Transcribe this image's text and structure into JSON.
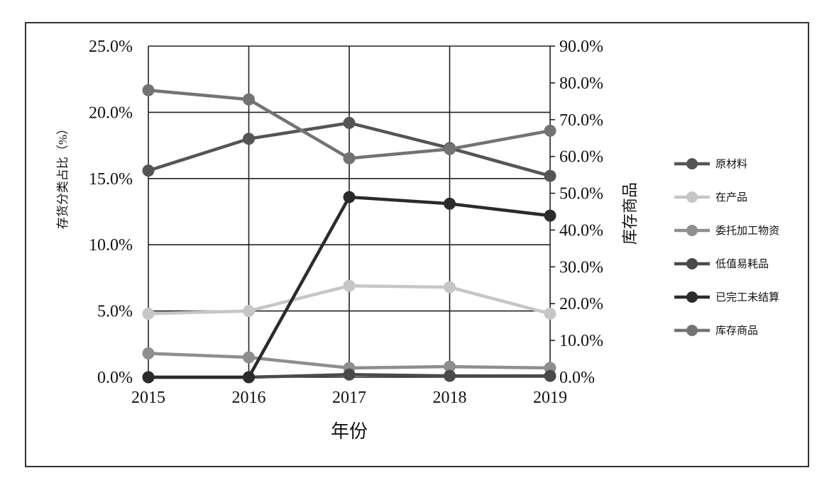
{
  "chart_data": {
    "type": "line",
    "x": [
      "2015",
      "2016",
      "2017",
      "2018",
      "2019"
    ],
    "xlabel": "年份",
    "ylabel": "存货分类占比（%）",
    "y2label": "库存商品",
    "ylim": [
      0,
      25
    ],
    "y2lim": [
      0,
      90
    ],
    "yticks": [
      "0.0%",
      "5.0%",
      "10.0%",
      "15.0%",
      "20.0%",
      "25.0%"
    ],
    "y2ticks": [
      "0.0%",
      "10.0%",
      "20.0%",
      "30.0%",
      "40.0%",
      "50.0%",
      "60.0%",
      "70.0%",
      "80.0%",
      "90.0%"
    ],
    "grid": true,
    "legend_position": "right",
    "series": [
      {
        "name": "原材料",
        "axis": "left",
        "color": "#555555",
        "values": [
          15.6,
          18.0,
          19.2,
          17.3,
          15.2
        ]
      },
      {
        "name": "在产品",
        "axis": "left",
        "color": "#c6c6c6",
        "values": [
          4.8,
          5.0,
          6.9,
          6.8,
          4.8
        ]
      },
      {
        "name": "委托加工物资",
        "axis": "left",
        "color": "#8e8e8e",
        "values": [
          1.8,
          1.5,
          0.7,
          0.8,
          0.7
        ]
      },
      {
        "name": "低值易耗品",
        "axis": "left",
        "color": "#4a4a4a",
        "values": [
          0.0,
          0.0,
          0.2,
          0.1,
          0.1
        ]
      },
      {
        "name": "已完工未结算",
        "axis": "left",
        "color": "#2b2b2b",
        "values": [
          0.0,
          0.0,
          13.6,
          13.1,
          12.2
        ]
      },
      {
        "name": "库存商品",
        "axis": "right",
        "color": "#737373",
        "values": [
          78.0,
          75.5,
          59.5,
          62.0,
          67.0
        ]
      }
    ]
  }
}
